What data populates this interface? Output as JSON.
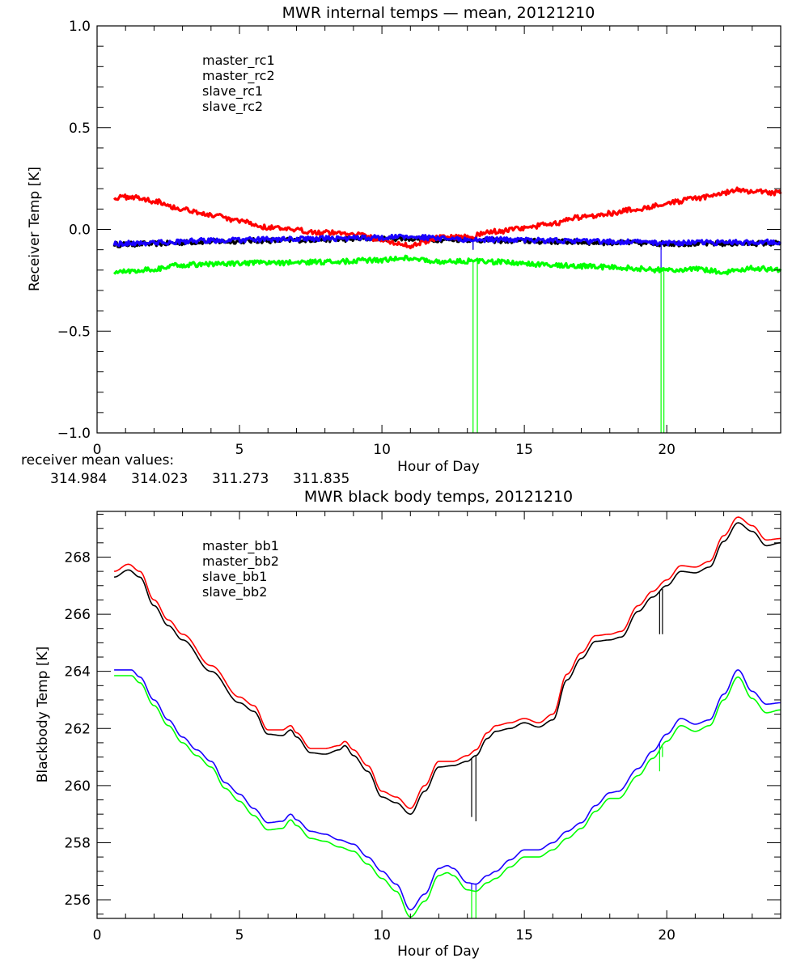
{
  "colors": {
    "black": "#000000",
    "red": "#ff0000",
    "blue": "#1a00ff",
    "green": "#00ff00"
  },
  "mean_values": {
    "label": "receiver mean values:",
    "values": [
      {
        "text": "314.984",
        "color": "black"
      },
      {
        "text": "314.023",
        "color": "red"
      },
      {
        "text": "311.273",
        "color": "blue"
      },
      {
        "text": "311.835",
        "color": "green"
      }
    ]
  },
  "chart_data": [
    {
      "type": "line",
      "title": "MWR internal temps — mean, 20121210",
      "xlabel": "Hour of Day",
      "ylabel": "Receiver Temp [K]",
      "xlim": [
        0,
        24
      ],
      "ylim": [
        -1.0,
        1.0
      ],
      "xticks": [
        0,
        5,
        10,
        15,
        20
      ],
      "xtick_labels": [
        "0",
        "5",
        "10",
        "15",
        "20"
      ],
      "x_minor_step": 1,
      "yticks": [
        -1.0,
        -0.5,
        0.0,
        0.5,
        1.0
      ],
      "ytick_labels": [
        "−1.0",
        "−0.5",
        "0.0",
        "0.5",
        "1.0"
      ],
      "y_minor_step": 0.1,
      "grid": false,
      "legend_position": "top-left",
      "noise_band": 0.012,
      "series": [
        {
          "name": "master_rc1",
          "color": "black",
          "x": [
            0.6,
            2,
            4,
            6,
            8,
            10,
            11,
            12,
            13,
            14,
            16,
            18,
            20,
            22,
            24
          ],
          "y": [
            -0.075,
            -0.07,
            -0.06,
            -0.055,
            -0.05,
            -0.045,
            -0.045,
            -0.05,
            -0.05,
            -0.055,
            -0.06,
            -0.065,
            -0.07,
            -0.07,
            -0.068
          ],
          "spikes": [
            {
              "x": 13.2,
              "y_end": -0.1
            },
            {
              "x": 19.8,
              "y_end": -0.1
            }
          ]
        },
        {
          "name": "master_rc2",
          "color": "red",
          "x": [
            0.6,
            1.2,
            2,
            3,
            4,
            5,
            6,
            7,
            8,
            9,
            10,
            10.5,
            11,
            11.5,
            12,
            13,
            14,
            15,
            16,
            17,
            18,
            19,
            20,
            21,
            22,
            22.6,
            23,
            24
          ],
          "y": [
            0.155,
            0.16,
            0.14,
            0.1,
            0.07,
            0.04,
            0.01,
            -0.005,
            -0.015,
            -0.02,
            -0.05,
            -0.07,
            -0.08,
            -0.06,
            -0.04,
            -0.035,
            -0.01,
            0.005,
            0.03,
            0.06,
            0.08,
            0.1,
            0.13,
            0.15,
            0.18,
            0.195,
            0.185,
            0.18
          ],
          "spikes": [
            {
              "x": 19.8,
              "y_end": 0.11
            }
          ]
        },
        {
          "name": "slave_rc1",
          "color": "blue",
          "x": [
            0.6,
            2,
            4,
            6,
            8,
            10,
            11,
            12,
            13,
            14,
            16,
            18,
            20,
            22,
            24
          ],
          "y": [
            -0.07,
            -0.065,
            -0.055,
            -0.05,
            -0.045,
            -0.04,
            -0.035,
            -0.045,
            -0.05,
            -0.05,
            -0.055,
            -0.06,
            -0.065,
            -0.065,
            -0.06
          ],
          "spikes": [
            {
              "x": 13.2,
              "y_end": -0.1
            },
            {
              "x": 19.8,
              "y_end": -0.19
            }
          ]
        },
        {
          "name": "slave_rc2",
          "color": "green",
          "x": [
            0.6,
            2,
            3,
            4,
            6,
            8,
            10,
            11,
            12,
            13,
            14,
            16,
            18,
            20,
            21,
            22,
            23,
            24
          ],
          "y": [
            -0.21,
            -0.195,
            -0.175,
            -0.17,
            -0.165,
            -0.16,
            -0.15,
            -0.14,
            -0.16,
            -0.155,
            -0.16,
            -0.175,
            -0.185,
            -0.2,
            -0.195,
            -0.21,
            -0.19,
            -0.2
          ],
          "spikes": [
            {
              "x": 13.2,
              "y_end": -1.0
            },
            {
              "x": 13.35,
              "y_end": -1.0
            },
            {
              "x": 19.8,
              "y_end": -1.0
            },
            {
              "x": 19.9,
              "y_end": -1.0
            }
          ]
        }
      ]
    },
    {
      "type": "line",
      "title": "MWR black body temps, 20121210",
      "xlabel": "Hour of Day",
      "ylabel": "Blackbody Temp [K]",
      "xlim": [
        0,
        24
      ],
      "ylim": [
        255.35,
        269.6
      ],
      "xticks": [
        0,
        5,
        10,
        15,
        20
      ],
      "xtick_labels": [
        "0",
        "5",
        "10",
        "15",
        "20"
      ],
      "x_minor_step": 1,
      "yticks": [
        256,
        258,
        260,
        262,
        264,
        266,
        268
      ],
      "ytick_labels": [
        "256",
        "258",
        "260",
        "262",
        "264",
        "266",
        "268"
      ],
      "y_minor_step": 0.5,
      "grid": false,
      "legend_position": "top-left",
      "noise_band": 0,
      "series": [
        {
          "name": "master_bb1",
          "color": "black",
          "x": [
            0.6,
            1.1,
            1.5,
            2,
            2.5,
            3,
            4,
            5,
            5.5,
            6,
            6.5,
            6.8,
            7,
            7.5,
            8,
            8.5,
            8.7,
            9,
            9.5,
            10,
            10.5,
            11,
            11.5,
            12,
            12.5,
            13,
            13.3,
            13.7,
            14,
            14.5,
            15,
            15.5,
            16,
            16.5,
            17,
            17.5,
            18,
            18.4,
            19,
            19.5,
            20,
            20.5,
            21,
            21.5,
            22,
            22.5,
            23,
            23.5,
            24
          ],
          "y": [
            267.3,
            267.55,
            267.3,
            266.3,
            265.6,
            265.1,
            264.0,
            262.9,
            262.6,
            261.8,
            261.75,
            261.95,
            261.7,
            261.15,
            261.1,
            261.25,
            261.4,
            261.05,
            260.5,
            259.6,
            259.4,
            259.0,
            259.8,
            260.65,
            260.7,
            260.85,
            261.05,
            261.65,
            261.9,
            262.0,
            262.2,
            262.05,
            262.3,
            263.7,
            264.45,
            265.05,
            265.1,
            265.2,
            266.1,
            266.6,
            267.0,
            267.5,
            267.45,
            267.65,
            268.55,
            269.2,
            268.9,
            268.4,
            268.5
          ],
          "spikes": [
            {
              "x": 13.15,
              "y_end": 258.9
            },
            {
              "x": 13.3,
              "y_end": 258.75
            },
            {
              "x": 19.75,
              "y_end": 265.3
            },
            {
              "x": 19.85,
              "y_end": 265.3
            }
          ]
        },
        {
          "name": "master_bb2",
          "color": "red",
          "x": [
            0.6,
            1.1,
            1.5,
            2,
            2.5,
            3,
            4,
            5,
            5.5,
            6,
            6.5,
            6.8,
            7,
            7.5,
            8,
            8.5,
            8.7,
            9,
            9.5,
            10,
            10.5,
            11,
            11.5,
            12,
            12.5,
            13,
            13.3,
            13.7,
            14,
            14.5,
            15,
            15.5,
            16,
            16.5,
            17,
            17.5,
            18,
            18.4,
            19,
            19.5,
            20,
            20.5,
            21,
            21.5,
            22,
            22.5,
            23,
            23.5,
            24
          ],
          "y": [
            267.5,
            267.75,
            267.5,
            266.5,
            265.8,
            265.3,
            264.2,
            263.1,
            262.8,
            261.95,
            261.95,
            262.1,
            261.85,
            261.3,
            261.3,
            261.4,
            261.55,
            261.25,
            260.7,
            259.8,
            259.6,
            259.2,
            260.0,
            260.85,
            260.85,
            261.05,
            261.25,
            261.85,
            262.1,
            262.2,
            262.35,
            262.2,
            262.5,
            263.9,
            264.65,
            265.25,
            265.3,
            265.4,
            266.3,
            266.8,
            267.2,
            267.7,
            267.65,
            267.85,
            268.75,
            269.4,
            269.1,
            268.6,
            268.65
          ],
          "spikes": []
        },
        {
          "name": "slave_bb1",
          "color": "blue",
          "x": [
            0.6,
            1.2,
            1.5,
            2,
            2.5,
            3,
            3.5,
            4,
            4.5,
            5,
            5.5,
            6,
            6.5,
            6.8,
            7,
            7.5,
            8,
            8.5,
            9,
            9.5,
            10,
            10.5,
            11,
            11.5,
            12,
            12.3,
            12.5,
            13,
            13.3,
            13.7,
            14,
            14.5,
            15,
            15.5,
            16,
            16.5,
            17,
            17.5,
            18,
            18.3,
            19,
            19.5,
            20,
            20.5,
            21,
            21.5,
            22,
            22.5,
            23,
            23.5,
            24
          ],
          "y": [
            264.05,
            264.05,
            263.8,
            263.0,
            262.3,
            261.7,
            261.25,
            260.85,
            260.1,
            259.7,
            259.2,
            258.7,
            258.75,
            259.0,
            258.8,
            258.4,
            258.3,
            258.1,
            257.95,
            257.5,
            257.0,
            256.55,
            255.65,
            256.2,
            257.1,
            257.2,
            257.1,
            256.6,
            256.55,
            256.85,
            257.0,
            257.4,
            257.75,
            257.75,
            258.0,
            258.4,
            258.7,
            259.3,
            259.75,
            259.8,
            260.6,
            261.2,
            261.8,
            262.35,
            262.15,
            262.3,
            263.2,
            264.05,
            263.3,
            262.85,
            262.9
          ],
          "spikes": [
            {
              "x": 13.15,
              "y_end": 256.3
            },
            {
              "x": 13.3,
              "y_end": 256.3
            },
            {
              "x": 19.75,
              "y_end": 261.1
            }
          ]
        },
        {
          "name": "slave_bb2",
          "color": "green",
          "x": [
            0.6,
            1.2,
            1.5,
            2,
            2.5,
            3,
            3.5,
            4,
            4.5,
            5,
            5.5,
            6,
            6.5,
            6.8,
            7,
            7.5,
            8,
            8.5,
            9,
            9.5,
            10,
            10.5,
            11,
            11.5,
            12,
            12.3,
            12.5,
            13,
            13.3,
            13.7,
            14,
            14.5,
            15,
            15.5,
            16,
            16.5,
            17,
            17.5,
            18,
            18.3,
            19,
            19.5,
            20,
            20.5,
            21,
            21.5,
            22,
            22.5,
            23,
            23.5,
            24
          ],
          "y": [
            263.85,
            263.85,
            263.6,
            262.8,
            262.1,
            261.5,
            261.05,
            260.65,
            259.9,
            259.45,
            258.95,
            258.45,
            258.5,
            258.8,
            258.6,
            258.15,
            258.05,
            257.85,
            257.7,
            257.25,
            256.75,
            256.3,
            255.4,
            255.95,
            256.85,
            256.95,
            256.85,
            256.35,
            256.3,
            256.6,
            256.75,
            257.15,
            257.5,
            257.5,
            257.75,
            258.15,
            258.5,
            259.1,
            259.55,
            259.55,
            260.35,
            260.95,
            261.55,
            262.1,
            261.9,
            262.1,
            263.0,
            263.8,
            263.05,
            262.55,
            262.65
          ],
          "spikes": [
            {
              "x": 13.15,
              "y_end": 255.35
            },
            {
              "x": 13.3,
              "y_end": 255.35
            },
            {
              "x": 19.75,
              "y_end": 260.5
            },
            {
              "x": 19.85,
              "y_end": 261.0
            }
          ]
        }
      ]
    }
  ]
}
